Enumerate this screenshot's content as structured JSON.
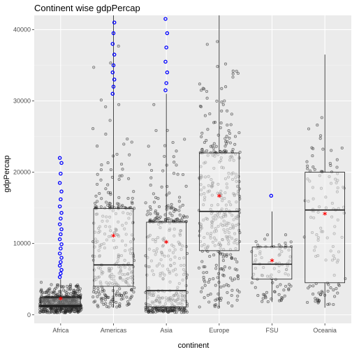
{
  "chart_data": {
    "type": "box",
    "title": "Continent wise gdpPercap",
    "xlabel": "continent",
    "ylabel": "gdpPercap",
    "categories": [
      "Africa",
      "Americas",
      "Asia",
      "Europe",
      "FSU",
      "Oceania"
    ],
    "ylim": [
      -1200,
      42000
    ],
    "yticks": [
      0,
      10000,
      20000,
      30000,
      40000
    ],
    "grid": true,
    "legend": "none",
    "colors": {
      "panel": "#ebebeb",
      "grid_major": "#ffffff",
      "grid_minor": "#f3f3f3",
      "points": "#333333",
      "outliers": "#0000ff",
      "mean": "#ff0000",
      "box_outline": "#1a1a1a"
    },
    "boxes": [
      {
        "category": "Africa",
        "whisker_low": 300,
        "q1": 1200,
        "median": 1300,
        "q3": 2400,
        "whisker_high": 5000,
        "mean": 2100,
        "outliers_high": [
          5300,
          5800,
          6300,
          6900,
          7400,
          8000,
          8600,
          9300,
          9900,
          10600,
          11300,
          12000,
          12700,
          13500,
          14300,
          15200,
          16200,
          17300,
          18500,
          19800,
          21300,
          22000
        ],
        "fill": "#8c8c8c"
      },
      {
        "category": "Americas",
        "whisker_low": 1000,
        "q1": 4000,
        "median": 7000,
        "q3": 14900,
        "whisker_high": 42000,
        "mean": 10900,
        "outliers_high": [
          31000,
          32000,
          33000,
          34000,
          35000,
          36500,
          38000,
          39500,
          41000
        ],
        "fill": "#f0f0f0"
      },
      {
        "category": "Asia",
        "whisker_low": 300,
        "q1": 1100,
        "median": 3400,
        "q3": 13000,
        "whisker_high": 31000,
        "mean": 10000,
        "outliers_high": [
          31500,
          32500,
          34000,
          35500,
          37500,
          39500,
          41500
        ],
        "fill": "#f0f0f0"
      },
      {
        "category": "Europe",
        "whisker_low": 1000,
        "q1": 9000,
        "median": 14500,
        "q3": 22700,
        "whisker_high": 42000,
        "mean": 16500,
        "outliers_high": [],
        "fill": "#f0f0f0"
      },
      {
        "category": "FSU",
        "whisker_low": 1800,
        "q1": 5000,
        "median": 7100,
        "q3": 9500,
        "whisker_high": 14500,
        "mean": 7400,
        "outliers_high": [
          16700
        ],
        "fill": "#f0f0f0"
      },
      {
        "category": "Oceania",
        "whisker_low": 1000,
        "q1": 4500,
        "median": 14700,
        "q3": 20000,
        "whisker_high": 36500,
        "mean": 14000,
        "outliers_high": [],
        "fill": "#f0f0f0"
      }
    ]
  }
}
